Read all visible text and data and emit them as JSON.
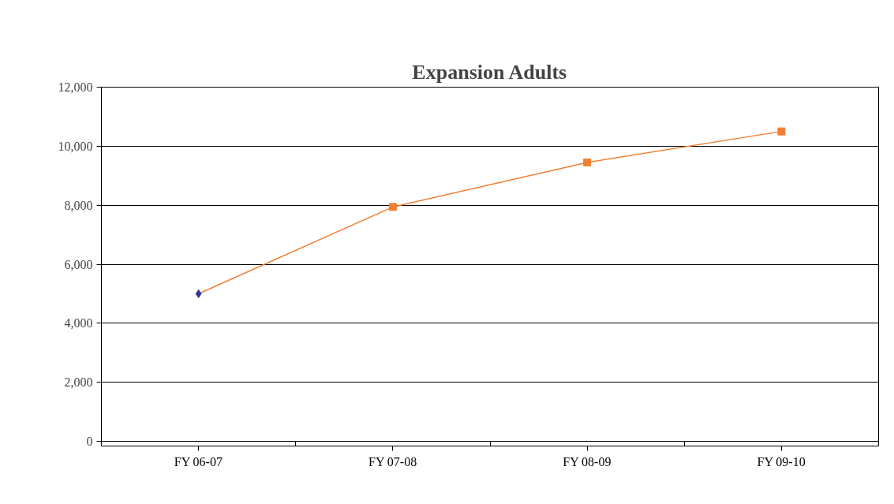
{
  "chart_data": {
    "type": "line",
    "title": "Expansion Adults",
    "categories": [
      "FY 06-07",
      "FY 07-08",
      "FY 08-09",
      "FY 09-10"
    ],
    "series": [
      {
        "color": "#f07f33",
        "values": [
          5000,
          7940,
          9450,
          10500
        ],
        "marker": "none"
      },
      {
        "type": "scatter",
        "color": "#f07f33",
        "values": [
          null,
          7940,
          9450,
          10500
        ],
        "marker": "square"
      },
      {
        "type": "scatter",
        "color": "#333399",
        "values": [
          5000,
          null,
          null,
          null
        ],
        "marker": "diamond"
      }
    ],
    "ylim": [
      0,
      12000
    ],
    "yticks": [
      {
        "value": 0,
        "label": "0"
      },
      {
        "value": 2000,
        "label": "2,000"
      },
      {
        "value": 4000,
        "label": "4,000"
      },
      {
        "value": 6000,
        "label": "6,000"
      },
      {
        "value": 8000,
        "label": "8,000"
      },
      {
        "value": 10000,
        "label": "10,000"
      },
      {
        "value": 12000,
        "label": "12,000"
      }
    ],
    "grid": "y"
  }
}
